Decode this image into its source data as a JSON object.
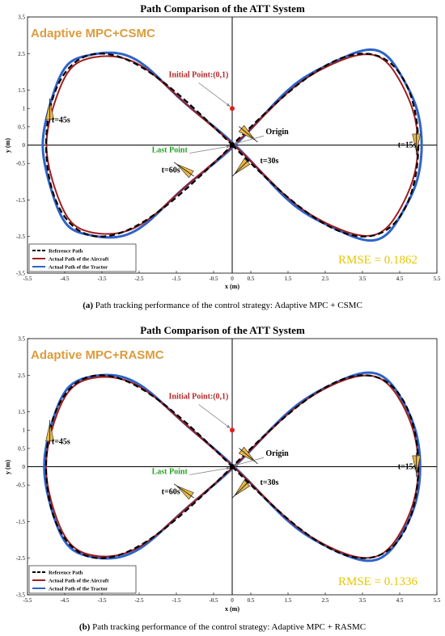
{
  "colors": {
    "reference": "#000000",
    "aircraft": "#a01e1e",
    "tractor": "#2e63c8",
    "method_label": "#dc9b3c",
    "rmse_label": "#e8c600",
    "initial_label": "#b42828",
    "last_label": "#28a028",
    "start_point": "#e02020",
    "wedge": "#e8b84a"
  },
  "chart_data": [
    {
      "type": "line",
      "title": "Path Comparison of the ATT System",
      "xlabel": "x (m)",
      "ylabel": "y (m)",
      "xlim": [
        -5.5,
        5.5
      ],
      "ylim": [
        -3.5,
        3.5
      ],
      "x_ticks": [
        "-5.5",
        "-4.5",
        "-3.5",
        "-2.5",
        "-1.5",
        "-0.5",
        "0",
        "0.5",
        "1.5",
        "2.5",
        "3.5",
        "4.5",
        "5.5"
      ],
      "y_ticks": [
        "3.5",
        "2.5",
        "1.5",
        "1",
        "0.5",
        "0",
        "-0.5",
        "-1.5",
        "-2.5",
        "-3.5"
      ],
      "method_label": "Adaptive MPC+CSMC",
      "rmse_label": "RMSE = 0.1862",
      "annotations": {
        "initial_point": "Initial Point:(0,1)",
        "origin": "Origin",
        "last_point": "Last Point",
        "t15": "t=15s",
        "t30": "t=30s",
        "t45": "t=45s",
        "t60": "t=60s"
      },
      "legend": [
        "Reference Path",
        "Actual Path of the Aircraft",
        "Actual Path of the Tractor"
      ],
      "legend_position": "bottom-left",
      "series": [
        {
          "name": "Reference Path",
          "style": "dashed",
          "x_amplitude": 5,
          "y_amplitude": 2.5,
          "skew": 0,
          "offset": 0
        },
        {
          "name": "Actual Path of the Aircraft",
          "style": "solid",
          "x_amplitude": 4.95,
          "y_amplitude": 2.45,
          "skew": 0.04,
          "offset": 0.04
        },
        {
          "name": "Actual Path of the Tractor",
          "style": "solid",
          "x_amplitude": 5.05,
          "y_amplitude": 2.55,
          "skew": 0.04,
          "offset": 0.07
        }
      ],
      "initial_point": [
        0,
        1
      ],
      "caption_label": "(a)",
      "caption": " Path tracking performance of the control strategy: Adaptive MPC + CSMC"
    },
    {
      "type": "line",
      "title": "Path Comparison of the ATT System",
      "xlabel": "x (m)",
      "ylabel": "y (m)",
      "xlim": [
        -5.5,
        5.5
      ],
      "ylim": [
        -3.5,
        3.5
      ],
      "x_ticks": [
        "-5.5",
        "-4.5",
        "-3.5",
        "-2.5",
        "-1.5",
        "-0.5",
        "0",
        "0.5",
        "1.5",
        "2.5",
        "3.5",
        "4.5",
        "5.5"
      ],
      "y_ticks": [
        "3.5",
        "2.5",
        "1.5",
        "1",
        "0.5",
        "0",
        "-0.5",
        "-1.5",
        "-2.5",
        "-3.5"
      ],
      "method_label": "Adaptive MPC+RASMC",
      "rmse_label": "RMSE = 0.1336",
      "annotations": {
        "initial_point": "Initial Point:(0,1)",
        "origin": "Origin",
        "last_point": "Last Point",
        "t15": "t=15s",
        "t30": "t=30s",
        "t45": "t=45s",
        "t60": "t=60s"
      },
      "legend": [
        "Reference Path",
        "Actual Path of the Aircraft",
        "Actual Path of the Tractor"
      ],
      "legend_position": "bottom-left",
      "series": [
        {
          "name": "Reference Path",
          "style": "dashed",
          "x_amplitude": 5,
          "y_amplitude": 2.5,
          "skew": 0,
          "offset": 0
        },
        {
          "name": "Actual Path of the Aircraft",
          "style": "solid",
          "x_amplitude": 4.97,
          "y_amplitude": 2.47,
          "skew": 0.03,
          "offset": 0.03
        },
        {
          "name": "Actual Path of the Tractor",
          "style": "solid",
          "x_amplitude": 5.02,
          "y_amplitude": 2.53,
          "skew": 0.03,
          "offset": 0.05
        }
      ],
      "initial_point": [
        0,
        1
      ],
      "caption_label": "(b)",
      "caption": " Path tracking performance of the control strategy: Adaptive MPC + RASMC"
    }
  ]
}
